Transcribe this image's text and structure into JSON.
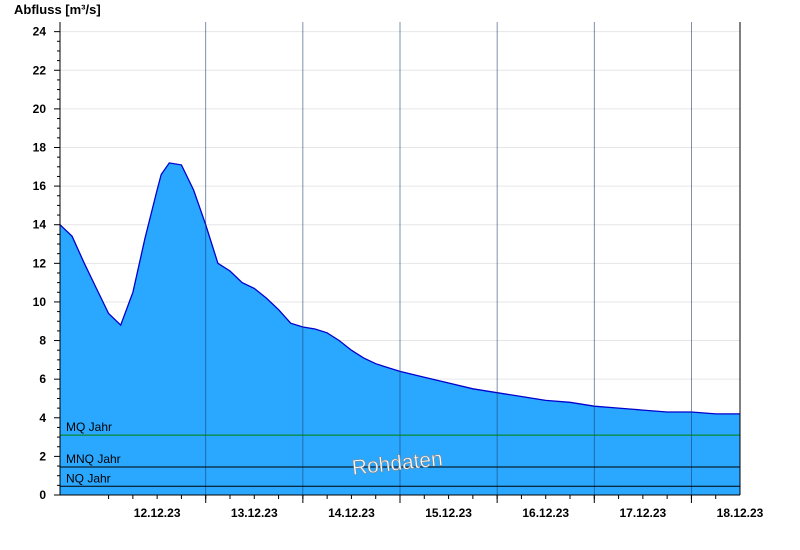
{
  "chart_data": {
    "type": "area",
    "ylabel": "Abfluss [m³/s]",
    "ylim": [
      0,
      24.5
    ],
    "yticks": [
      0,
      2,
      4,
      6,
      8,
      10,
      12,
      14,
      16,
      18,
      20,
      22,
      24
    ],
    "xlim": [
      "2023-12-11T12:00",
      "2023-12-18T12:00"
    ],
    "xtick_labels": [
      "12.12.23",
      "13.12.23",
      "14.12.23",
      "15.12.23",
      "16.12.23",
      "17.12.23",
      "18.12.23"
    ],
    "grid": true,
    "watermark": "Rohdaten",
    "fill_color": "#2aa8ff",
    "line_color": "#0000cc",
    "series": [
      {
        "x": [
          "2023-12-11T12:00",
          "2023-12-11T15:00",
          "2023-12-11T18:00",
          "2023-12-11T21:00",
          "2023-12-12T00:00",
          "2023-12-12T03:00",
          "2023-12-12T06:00",
          "2023-12-12T09:00",
          "2023-12-12T12:00",
          "2023-12-12T13:00",
          "2023-12-12T15:00",
          "2023-12-12T18:00",
          "2023-12-12T21:00",
          "2023-12-13T00:00",
          "2023-12-13T03:00",
          "2023-12-13T06:00",
          "2023-12-13T09:00",
          "2023-12-13T12:00",
          "2023-12-13T15:00",
          "2023-12-13T18:00",
          "2023-12-13T21:00",
          "2023-12-14T00:00",
          "2023-12-14T03:00",
          "2023-12-14T06:00",
          "2023-12-14T09:00",
          "2023-12-14T12:00",
          "2023-12-14T15:00",
          "2023-12-14T18:00",
          "2023-12-14T21:00",
          "2023-12-15T00:00",
          "2023-12-15T06:00",
          "2023-12-15T12:00",
          "2023-12-15T18:00",
          "2023-12-16T00:00",
          "2023-12-16T06:00",
          "2023-12-16T12:00",
          "2023-12-16T18:00",
          "2023-12-17T00:00",
          "2023-12-17T06:00",
          "2023-12-17T12:00",
          "2023-12-17T18:00",
          "2023-12-18T00:00",
          "2023-12-18T06:00",
          "2023-12-18T12:00"
        ],
        "values": [
          14.0,
          13.4,
          12.0,
          10.7,
          9.4,
          8.8,
          10.5,
          13.3,
          15.8,
          16.6,
          17.2,
          17.1,
          15.8,
          14.0,
          12.0,
          11.6,
          11.0,
          10.7,
          10.2,
          9.6,
          8.9,
          8.7,
          8.6,
          8.4,
          8.0,
          7.5,
          7.1,
          6.8,
          6.6,
          6.4,
          6.1,
          5.8,
          5.5,
          5.3,
          5.1,
          4.9,
          4.8,
          4.6,
          4.5,
          4.4,
          4.3,
          4.3,
          4.2,
          4.2
        ]
      }
    ],
    "reference_lines": [
      {
        "label": "MQ Jahr",
        "value": 3.1,
        "color": "#008000"
      },
      {
        "label": "MNQ Jahr",
        "value": 1.45,
        "color": "#000000"
      },
      {
        "label": "NQ Jahr",
        "value": 0.45,
        "color": "#000000"
      }
    ]
  }
}
